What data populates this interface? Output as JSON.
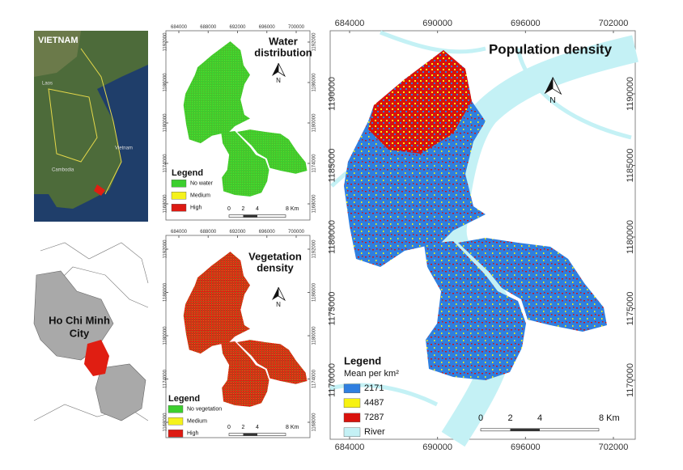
{
  "locator_map": {
    "labels": [
      "VIETNAM",
      "Laos",
      "Cambodia",
      "Vietnam"
    ]
  },
  "city_map": {
    "label_lines": [
      "Ho Chi Minh",
      "City"
    ]
  },
  "water_map": {
    "title_lines": [
      "Water",
      "distribution"
    ],
    "north": "N",
    "xticks": [
      684000,
      688000,
      692000,
      696000,
      700000
    ],
    "yticks": [
      1192000,
      1186000,
      1180000,
      1174000,
      1168000
    ],
    "legend": {
      "title": "Legend",
      "items": [
        {
          "label": "No water",
          "color": "#3ccf2e"
        },
        {
          "label": "Medium",
          "color": "#f5f21c"
        },
        {
          "label": "High",
          "color": "#dd1a12"
        }
      ]
    },
    "scale": [
      0,
      2,
      4,
      "8 Km"
    ]
  },
  "vegetation_map": {
    "title_lines": [
      "Vegetation",
      "density"
    ],
    "north": "N",
    "xticks": [
      684000,
      688000,
      692000,
      696000,
      700000
    ],
    "yticks": [
      1192000,
      1186000,
      1180000,
      1174000,
      1168000
    ],
    "legend": {
      "title": "Legend",
      "items": [
        {
          "label": "No vegetation",
          "color": "#3ccf2e"
        },
        {
          "label": "Medium",
          "color": "#f5f21c"
        },
        {
          "label": "High",
          "color": "#dd1a12"
        }
      ]
    },
    "scale": [
      0,
      2,
      4,
      "8 Km"
    ]
  },
  "population_map": {
    "title_lines": [
      "Population density"
    ],
    "north": "N",
    "xticks": [
      684000,
      690000,
      696000,
      702000
    ],
    "yticks": [
      1190000,
      1185000,
      1180000,
      1175000,
      1170000
    ],
    "legend": {
      "title": "Legend",
      "subtitle": "Mean per km²",
      "items": [
        {
          "label": "2171",
          "color": "#2f7fe0"
        },
        {
          "label": "4487",
          "color": "#f7f20f"
        },
        {
          "label": "7287",
          "color": "#d9120c"
        },
        {
          "label": "River",
          "color": "#c4f1f5"
        }
      ]
    },
    "scale": [
      0,
      2,
      4,
      "8 Km"
    ]
  }
}
